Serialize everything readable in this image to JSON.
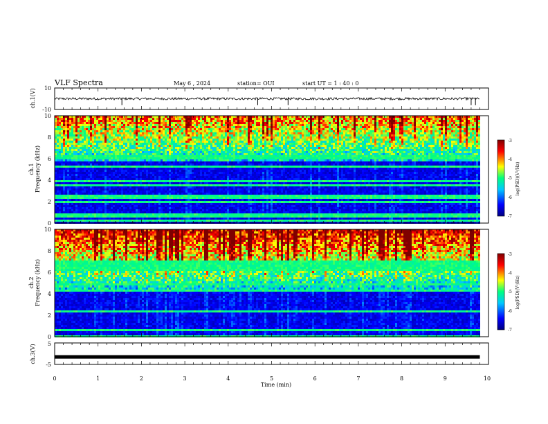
{
  "header": {
    "title": "VLF Spectra",
    "date": "May 6 , 2024",
    "station": "station= OUI",
    "start": "start  UT =   1 : 40 : 0"
  },
  "chart_data": [
    {
      "type": "line",
      "panel": "ch1-waveform",
      "ylabel": "ch.1(V)",
      "ylim": [
        -10,
        10
      ],
      "y_ticks": [
        "10",
        "-10"
      ],
      "baseline": 0,
      "spikes_x_min": [
        1.55,
        4.68,
        5.38,
        9.6,
        9.7
      ]
    },
    {
      "type": "heatmap",
      "panel": "ch1-spectrogram",
      "ylabel_top": "ch.1",
      "ylabel": "Frequency (kHz)",
      "ylim": [
        0,
        10
      ],
      "y_ticks": [
        "0",
        "2",
        "4",
        "6",
        "8",
        "10"
      ],
      "colorbar": {
        "label": "log(PSD)(V²/Hz)",
        "range": [
          -7,
          -3
        ],
        "ticks": [
          "-3",
          "-4",
          "-5",
          "-6",
          "-7"
        ]
      }
    },
    {
      "type": "heatmap",
      "panel": "ch2-spectrogram",
      "ylabel_top": "ch.2",
      "ylabel": "Frequency (kHz)",
      "ylim": [
        0,
        10
      ],
      "y_ticks": [
        "0",
        "2",
        "4",
        "6",
        "8",
        "10"
      ],
      "colorbar": {
        "label": "log(PSD)(V²/Hz)",
        "range": [
          -7,
          -3
        ],
        "ticks": [
          "-3",
          "-4",
          "-5",
          "-6",
          "-7"
        ]
      }
    },
    {
      "type": "line",
      "panel": "ch3-waveform",
      "ylabel": "ch.3(V)",
      "ylim": [
        -5,
        5
      ],
      "y_ticks": [
        "5",
        "-5"
      ],
      "values_constant": -1.5
    }
  ],
  "x_axis": {
    "label": "Time  (min)",
    "range": [
      0,
      10
    ],
    "data_end_min": 9.8,
    "ticks": [
      "0",
      "1",
      "2",
      "3",
      "4",
      "5",
      "6",
      "7",
      "8",
      "9",
      "10"
    ]
  },
  "colors": {
    "colormap": [
      "#00007f",
      "#0000ff",
      "#00c8ff",
      "#00ff80",
      "#ffff00",
      "#ff0000",
      "#7f0000"
    ]
  }
}
